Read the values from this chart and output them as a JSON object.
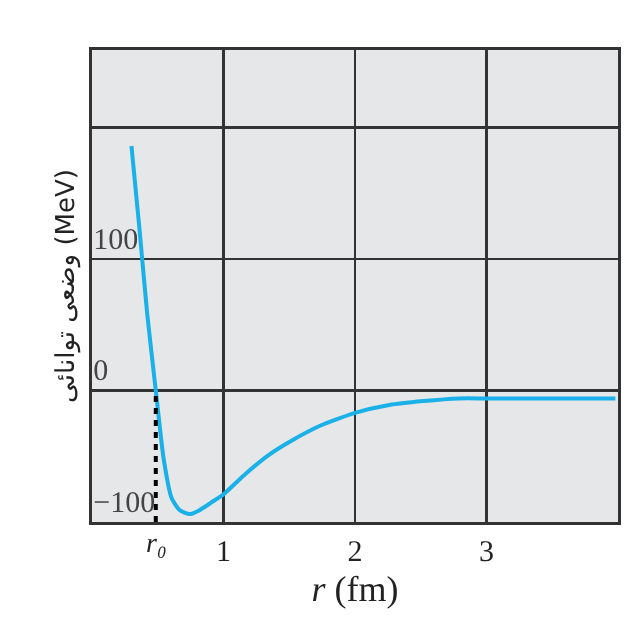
{
  "chart_data": {
    "type": "line",
    "xlabel": "r (fm)",
    "ylabel": "وضعی توانائی (MeV)",
    "xlim": [
      0,
      4
    ],
    "xticks": [
      {
        "value": 0,
        "label": null
      },
      1,
      2,
      3,
      {
        "value": 4,
        "label": null
      }
    ],
    "ylim": [
      -100,
      259
    ],
    "yticks": [
      -100,
      0,
      100,
      {
        "value": 200,
        "label": null
      }
    ],
    "grid": true,
    "marker": "none",
    "series": [
      {
        "color": "#1ab0e8",
        "line_style": "solid",
        "x": [
          0.3,
          0.36,
          0.42,
          0.485,
          0.545,
          0.606,
          0.667,
          0.742,
          0.818,
          0.91,
          1.0,
          1.15,
          1.33,
          1.52,
          1.73,
          2.0,
          2.26,
          2.52,
          2.79,
          3.0,
          3.48,
          3.98
        ],
        "values": [
          186,
          124,
          58,
          0,
          -52,
          -82,
          -91,
          -94,
          -91,
          -85,
          -79,
          -65,
          -50,
          -38,
          -27,
          -17,
          -11,
          -8,
          -6,
          -6,
          -6,
          -6
        ]
      },
      {
        "color": "#000000",
        "line_style": "dotted",
        "x": [
          0.485,
          0.485
        ],
        "values": [
          -100,
          0
        ]
      }
    ],
    "annotations": [
      {
        "text": "r₀",
        "x": 0.485,
        "y": -100
      }
    ]
  }
}
